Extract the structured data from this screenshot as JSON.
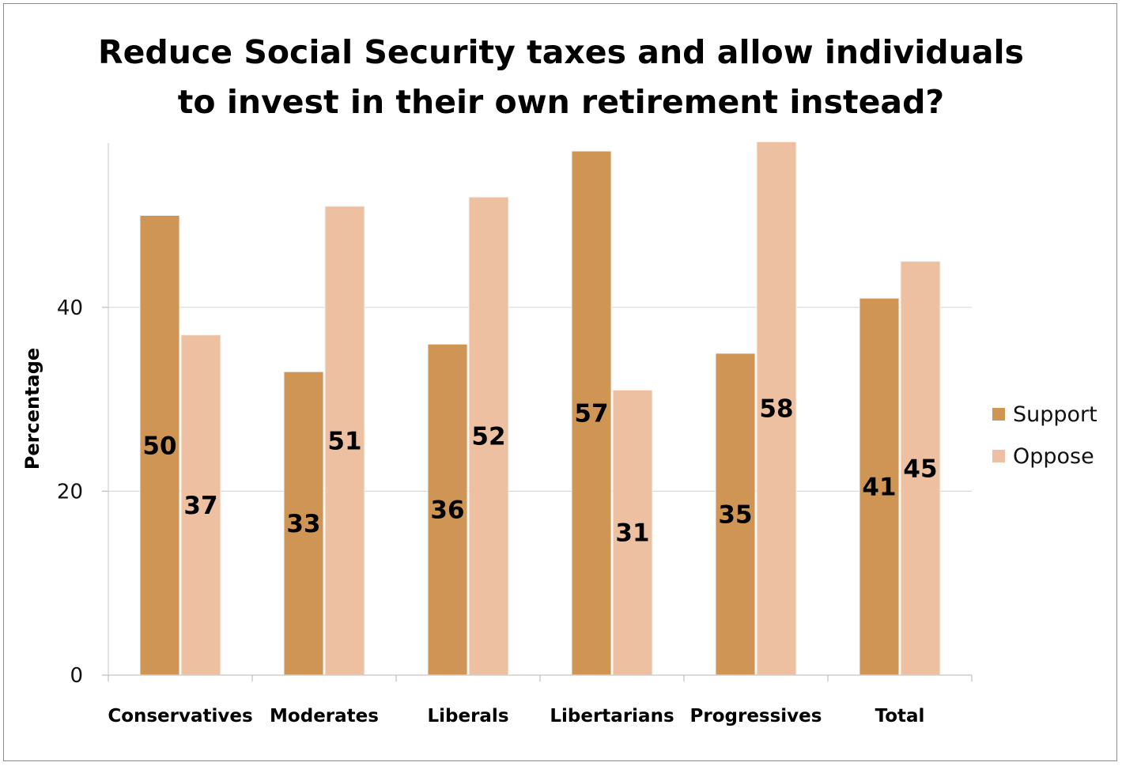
{
  "chart_data": {
    "type": "bar",
    "title_lines": [
      "Reduce Social Security taxes and allow individuals",
      "to invest in their own retirement instead?"
    ],
    "ylabel": "Percentage",
    "xlabel": "",
    "ylim": [
      0,
      58
    ],
    "yticks": [
      0,
      20,
      40
    ],
    "grid": true,
    "legend_position": "right",
    "categories": [
      "Conservatives",
      "Moderates",
      "Liberals",
      "Libertarians",
      "Progressives",
      "Total"
    ],
    "series": [
      {
        "name": "Support",
        "color": "#cf9555",
        "values": [
          50,
          33,
          36,
          57,
          35,
          41
        ],
        "labels": [
          "50",
          "33",
          "36",
          "57",
          "35",
          "41"
        ]
      },
      {
        "name": "Oppose",
        "color": "#ecc0a0",
        "values": [
          37,
          51,
          52,
          31,
          58,
          45
        ],
        "labels": [
          "37",
          "51",
          "52",
          "31",
          "58",
          "45"
        ]
      }
    ]
  }
}
